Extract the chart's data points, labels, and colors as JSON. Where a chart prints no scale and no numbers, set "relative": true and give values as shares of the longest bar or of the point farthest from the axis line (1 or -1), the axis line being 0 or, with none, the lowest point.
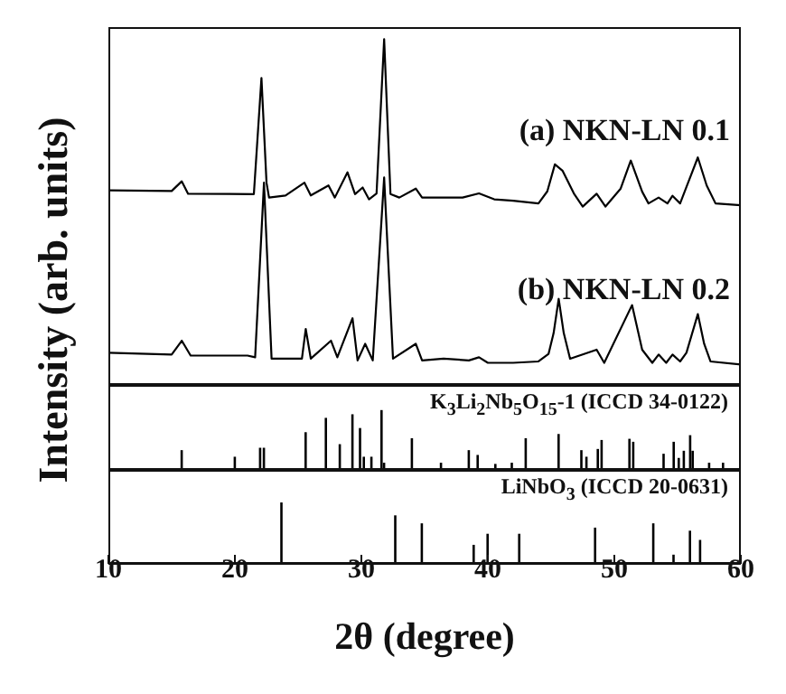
{
  "chart_data": [
    {
      "type": "line",
      "ylabel": "Intensity (arb. units)",
      "relative": true,
      "xlim": [
        10,
        60
      ],
      "xticks": [
        10,
        20,
        30,
        40,
        50,
        60
      ],
      "tick_labels": false,
      "series": [
        {
          "name": "(a) NKN-LN 0.1",
          "color": "#000000",
          "x": [
            10,
            15,
            15.8,
            16.3,
            21.5,
            22.1,
            22.5,
            22.7,
            24,
            25.5,
            26,
            27.4,
            27.9,
            28.9,
            29.5,
            30.1,
            30.6,
            31.2,
            31.8,
            32.3,
            33,
            34.3,
            34.8,
            38,
            39.3,
            40.5,
            42,
            44,
            44.7,
            45.3,
            45.9,
            46.8,
            47.5,
            48.6,
            49.3,
            50.5,
            51.3,
            52.2,
            52.7,
            53.5,
            54.2,
            54.6,
            55.2,
            56.6,
            57.3,
            58,
            60
          ],
          "values": [
            0.563,
            0.561,
            0.589,
            0.553,
            0.552,
            0.888,
            0.585,
            0.542,
            0.548,
            0.585,
            0.548,
            0.577,
            0.542,
            0.615,
            0.552,
            0.571,
            0.537,
            0.554,
            1.0,
            0.552,
            0.542,
            0.568,
            0.542,
            0.542,
            0.554,
            0.537,
            0.533,
            0.525,
            0.56,
            0.638,
            0.62,
            0.554,
            0.516,
            0.553,
            0.516,
            0.568,
            0.649,
            0.559,
            0.525,
            0.542,
            0.525,
            0.547,
            0.525,
            0.658,
            0.577,
            0.525,
            0.52
          ]
        },
        {
          "name": "(b) NKN-LN 0.2",
          "color": "#000000",
          "x": [
            10,
            15,
            15.8,
            16.5,
            21,
            21.6,
            22.3,
            22.9,
            25.3,
            25.6,
            26,
            27.6,
            28.1,
            29.3,
            29.7,
            30.3,
            30.9,
            31.8,
            32.5,
            34.3,
            34.8,
            36.5,
            38.5,
            39.3,
            40,
            42,
            44,
            44.8,
            45.2,
            45.6,
            46,
            46.5,
            48.6,
            49.2,
            51.4,
            52.2,
            53,
            53.5,
            54.1,
            54.6,
            55.2,
            55.7,
            56.6,
            57.1,
            57.6,
            60
          ],
          "values": [
            0.093,
            0.088,
            0.128,
            0.085,
            0.085,
            0.08,
            0.585,
            0.076,
            0.076,
            0.162,
            0.076,
            0.128,
            0.08,
            0.193,
            0.071,
            0.119,
            0.071,
            0.6,
            0.076,
            0.119,
            0.071,
            0.076,
            0.071,
            0.08,
            0.064,
            0.064,
            0.068,
            0.09,
            0.15,
            0.249,
            0.15,
            0.076,
            0.102,
            0.064,
            0.231,
            0.102,
            0.064,
            0.088,
            0.064,
            0.088,
            0.068,
            0.093,
            0.205,
            0.119,
            0.068,
            0.059
          ]
        }
      ]
    },
    {
      "type": "bar",
      "relative": true,
      "xlim": [
        10,
        60
      ],
      "xticks": [
        10,
        20,
        30,
        40,
        50,
        60
      ],
      "tick_labels": false,
      "color": "#000000",
      "annotations": [
        "K$_{3}$Li$_{2}$Nb$_{5}$O$_{15}$-1 (ICCD 34-0122)"
      ],
      "x": [
        15.8,
        20.0,
        22.0,
        22.3,
        25.6,
        27.2,
        28.3,
        29.3,
        29.9,
        30.2,
        30.8,
        31.6,
        31.8,
        34.0,
        36.3,
        38.5,
        39.2,
        40.6,
        41.9,
        43.0,
        45.6,
        47.4,
        47.8,
        48.7,
        49.0,
        51.2,
        51.5,
        53.9,
        54.7,
        55.1,
        55.5,
        56.0,
        56.2,
        57.5,
        58.6
      ],
      "values": [
        0.33,
        0.22,
        0.37,
        0.37,
        0.63,
        0.87,
        0.43,
        0.93,
        0.7,
        0.22,
        0.22,
        1,
        0.12,
        0.53,
        0.12,
        0.33,
        0.25,
        0.1,
        0.12,
        0.53,
        0.6,
        0.33,
        0.22,
        0.35,
        0.5,
        0.52,
        0.47,
        0.27,
        0.47,
        0.2,
        0.32,
        0.58,
        0.32,
        0.12,
        0.12
      ]
    },
    {
      "type": "bar",
      "relative": true,
      "xlim": [
        10,
        60
      ],
      "xticks": [
        10,
        20,
        30,
        40,
        50,
        60
      ],
      "xlabel": "2θ (degree)",
      "color": "#000000",
      "annotations": [
        "LiNbO$_{3}$ (ICCD 20-0631)"
      ],
      "x": [
        23.7,
        32.7,
        34.8,
        38.9,
        40.0,
        42.5,
        48.5,
        53.1,
        54.7,
        56.0,
        56.8
      ],
      "values": [
        1,
        0.79,
        0.66,
        0.31,
        0.49,
        0.49,
        0.59,
        0.66,
        0.15,
        0.54,
        0.39
      ]
    }
  ]
}
